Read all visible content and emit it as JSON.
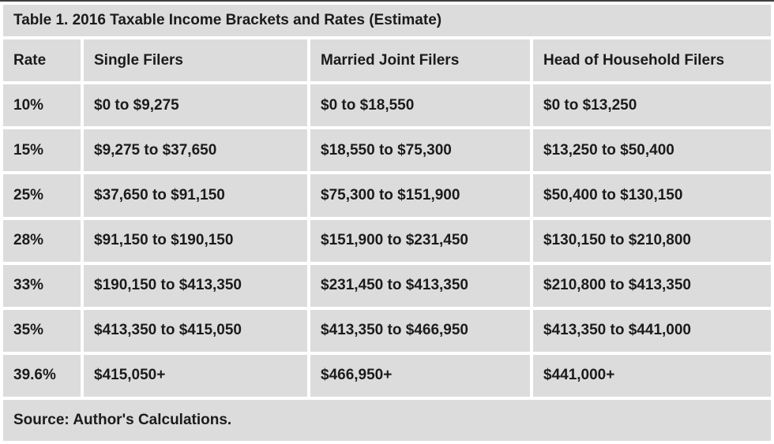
{
  "chart_data": {
    "type": "table",
    "title": "Table 1. 2016 Taxable Income Brackets and Rates (Estimate)",
    "columns": [
      "Rate",
      "Single Filers",
      "Married Joint Filers",
      "Head of Household Filers"
    ],
    "rows": [
      [
        "10%",
        "$0 to $9,275",
        "$0 to $18,550",
        "$0 to $13,250"
      ],
      [
        "15%",
        "$9,275 to $37,650",
        "$18,550 to $75,300",
        "$13,250 to $50,400"
      ],
      [
        "25%",
        "$37,650 to $91,150",
        "$75,300 to $151,900",
        "$50,400 to $130,150"
      ],
      [
        "28%",
        "$91,150 to $190,150",
        "$151,900 to $231,450",
        "$130,150 to $210,800"
      ],
      [
        "33%",
        "$190,150 to $413,350",
        "$231,450 to $413,350",
        "$210,800 to $413,350"
      ],
      [
        "35%",
        "$413,350 to $415,050",
        "$413,350 to $466,950",
        "$413,350 to $441,000"
      ],
      [
        "39.6%",
        "$415,050+",
        "$466,950+",
        "$441,000+"
      ]
    ],
    "source": "Source: Author's Calculations.",
    "layout": {
      "grid": "white gaps between gray cells",
      "rate_column_alignment": "right",
      "other_columns_alignment": "left"
    }
  },
  "colors": {
    "cell_background": "#dcdcdc",
    "grid_gap": "#ffffff",
    "text": "#1b1b1b",
    "top_border": "#3e3e3e"
  }
}
